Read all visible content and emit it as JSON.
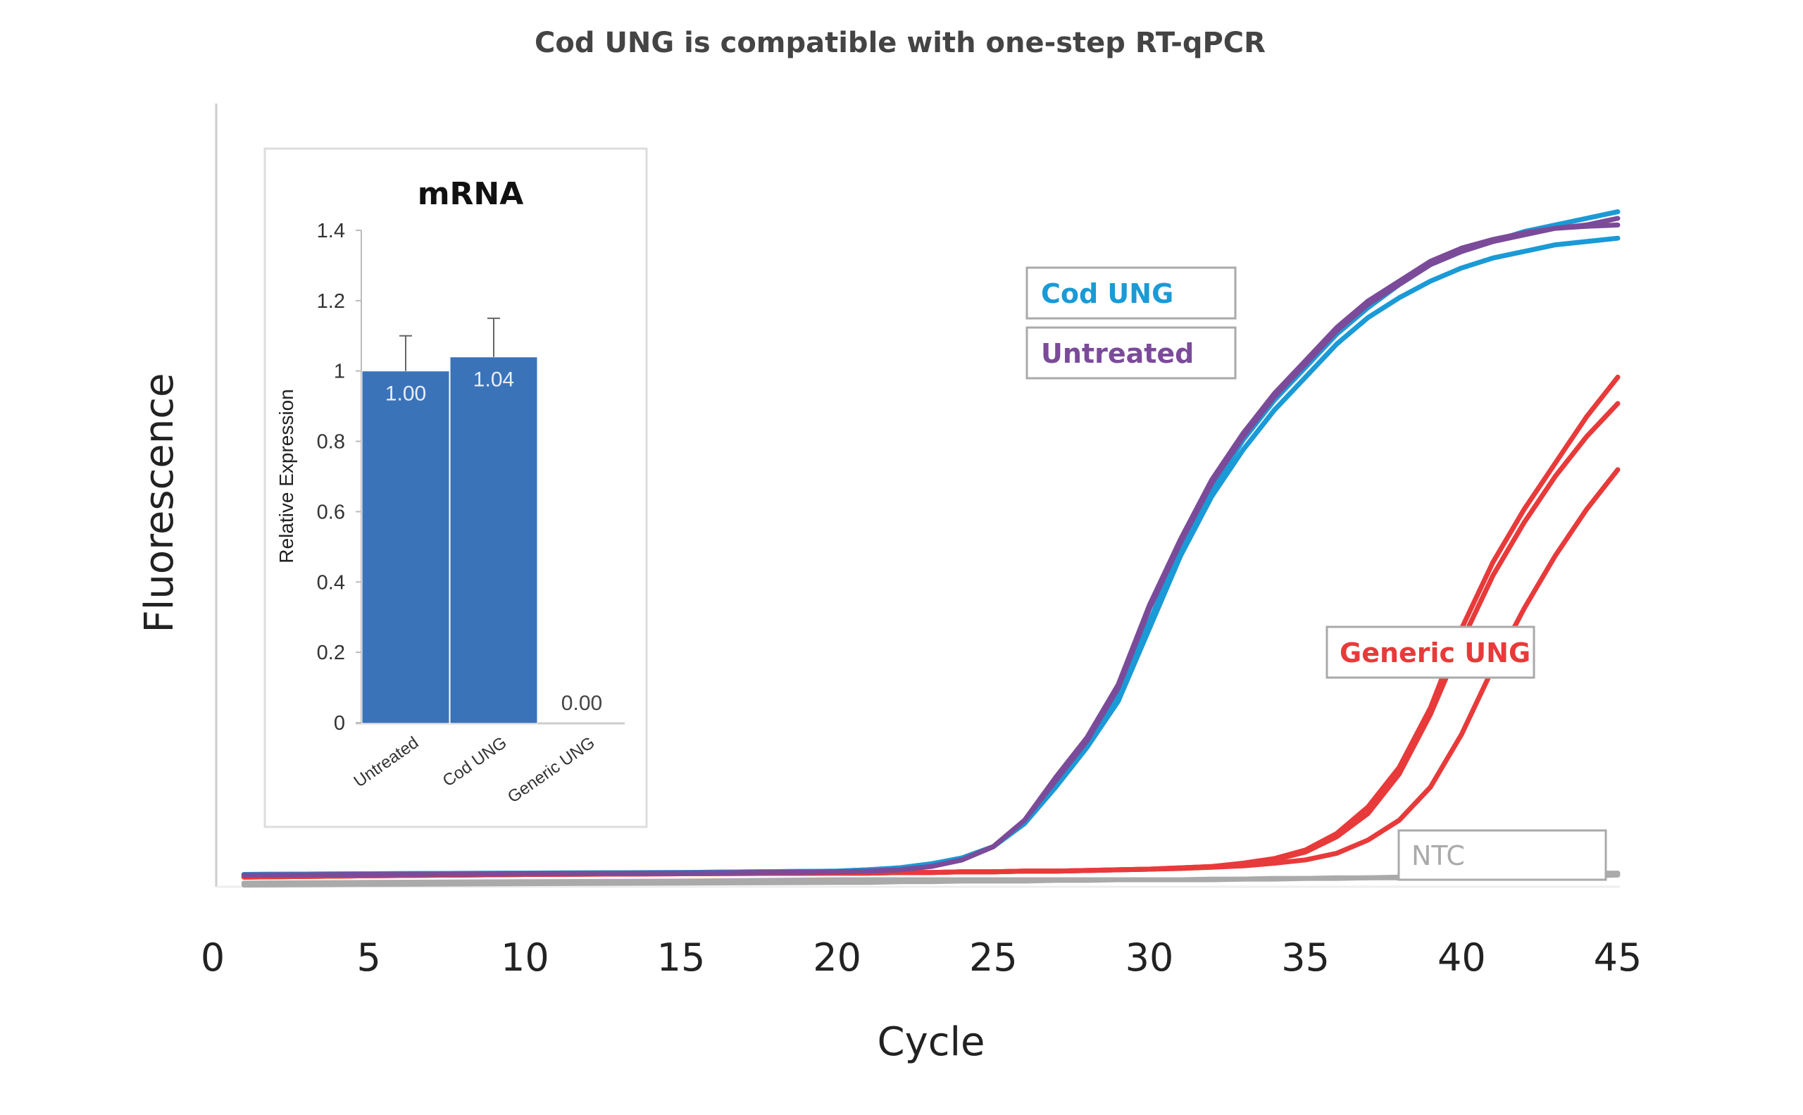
{
  "chart_data": [
    {
      "type": "line",
      "title": "Cod UNG is compatible with one-step RT-qPCR",
      "xlabel": "Cycle",
      "ylabel": "Fluorescence",
      "xlim": [
        0,
        45
      ],
      "xticks": [
        "0",
        "5",
        "10",
        "15",
        "20",
        "25",
        "30",
        "35",
        "40",
        "45"
      ],
      "grid": false,
      "x": [
        1,
        5,
        10,
        15,
        20,
        21,
        22,
        23,
        24,
        25,
        26,
        27,
        28,
        29,
        30,
        31,
        32,
        33,
        34,
        35,
        36,
        37,
        38,
        39,
        40,
        41,
        42,
        43,
        44,
        45
      ],
      "series": [
        {
          "group": "NTC",
          "color": "#aaaaaa",
          "values": [
            -0.005,
            -0.004,
            -0.003,
            -0.002,
            0,
            0,
            0,
            0,
            0,
            0,
            0,
            0,
            0,
            0,
            0,
            0,
            0.001,
            0.001,
            0.002,
            0.002,
            0.003,
            0.003,
            0.004,
            0.005,
            0.006,
            0.007,
            0.008,
            0.009,
            0.01,
            0.01
          ]
        },
        {
          "group": "NTC",
          "color": "#aaaaaa",
          "values": [
            -0.008,
            -0.007,
            -0.006,
            -0.005,
            -0.004,
            -0.004,
            -0.003,
            -0.003,
            -0.002,
            -0.002,
            -0.002,
            -0.001,
            -0.001,
            0,
            0,
            0,
            0,
            0.001,
            0.001,
            0.002,
            0.002,
            0.003,
            0.003,
            0.004,
            0.004,
            0.005,
            0.005,
            0.006,
            0.006,
            0.007
          ]
        },
        {
          "group": "Generic UNG",
          "color": "#e83a3a",
          "values": [
            0.004,
            0.006,
            0.008,
            0.009,
            0.01,
            0.01,
            0.011,
            0.011,
            0.012,
            0.012,
            0.013,
            0.013,
            0.014,
            0.015,
            0.016,
            0.018,
            0.02,
            0.025,
            0.032,
            0.045,
            0.07,
            0.11,
            0.17,
            0.26,
            0.38,
            0.48,
            0.56,
            0.63,
            0.7,
            0.76
          ]
        },
        {
          "group": "Generic UNG",
          "color": "#e83a3a",
          "values": [
            0.004,
            0.006,
            0.008,
            0.009,
            0.01,
            0.01,
            0.011,
            0.011,
            0.012,
            0.012,
            0.013,
            0.013,
            0.014,
            0.015,
            0.016,
            0.018,
            0.02,
            0.024,
            0.03,
            0.042,
            0.065,
            0.1,
            0.16,
            0.25,
            0.36,
            0.46,
            0.54,
            0.61,
            0.67,
            0.72
          ]
        },
        {
          "group": "Generic UNG",
          "color": "#e83a3a",
          "values": [
            0.004,
            0.006,
            0.008,
            0.009,
            0.01,
            0.01,
            0.011,
            0.011,
            0.012,
            0.012,
            0.013,
            0.013,
            0.014,
            0.015,
            0.016,
            0.017,
            0.019,
            0.021,
            0.025,
            0.03,
            0.04,
            0.06,
            0.09,
            0.14,
            0.22,
            0.32,
            0.41,
            0.49,
            0.56,
            0.62
          ]
        },
        {
          "group": "Cod UNG",
          "color": "#1a9ad6",
          "values": [
            0.008,
            0.009,
            0.01,
            0.011,
            0.013,
            0.015,
            0.018,
            0.024,
            0.033,
            0.05,
            0.085,
            0.14,
            0.2,
            0.27,
            0.38,
            0.49,
            0.58,
            0.65,
            0.71,
            0.76,
            0.81,
            0.85,
            0.88,
            0.905,
            0.925,
            0.94,
            0.95,
            0.96,
            0.965,
            0.97
          ]
        },
        {
          "group": "Cod UNG",
          "color": "#1a9ad6",
          "values": [
            0.008,
            0.009,
            0.01,
            0.011,
            0.013,
            0.015,
            0.018,
            0.024,
            0.033,
            0.05,
            0.085,
            0.145,
            0.205,
            0.28,
            0.39,
            0.5,
            0.59,
            0.665,
            0.725,
            0.775,
            0.825,
            0.865,
            0.9,
            0.93,
            0.95,
            0.965,
            0.98,
            0.99,
            1.0,
            1.01
          ]
        },
        {
          "group": "Untreated",
          "color": "#7b4b9a",
          "values": [
            0.007,
            0.008,
            0.009,
            0.01,
            0.012,
            0.013,
            0.015,
            0.02,
            0.03,
            0.05,
            0.09,
            0.15,
            0.21,
            0.29,
            0.41,
            0.51,
            0.6,
            0.67,
            0.73,
            0.78,
            0.83,
            0.87,
            0.9,
            0.93,
            0.95,
            0.965,
            0.975,
            0.985,
            0.99,
            1.0
          ]
        },
        {
          "group": "Untreated",
          "color": "#7b4b9a",
          "values": [
            0.007,
            0.008,
            0.009,
            0.01,
            0.012,
            0.013,
            0.015,
            0.02,
            0.03,
            0.05,
            0.09,
            0.155,
            0.215,
            0.295,
            0.415,
            0.515,
            0.605,
            0.675,
            0.735,
            0.785,
            0.835,
            0.875,
            0.905,
            0.935,
            0.955,
            0.968,
            0.978,
            0.985,
            0.988,
            0.99
          ]
        }
      ],
      "labels": [
        {
          "text": "Cod UNG",
          "color": "#1a9ad6"
        },
        {
          "text": "Untreated",
          "color": "#7b4b9a"
        },
        {
          "text": "Generic UNG",
          "color": "#e83a3a"
        },
        {
          "text": "NTC",
          "color": "#aaaaaa"
        }
      ]
    },
    {
      "type": "bar",
      "title": "mRNA",
      "ylabel": "Relative Expression",
      "ylim": [
        0,
        1.4
      ],
      "yticks": [
        "0",
        "0.2",
        "0.4",
        "0.6",
        "0.8",
        "1",
        "1.2",
        "1.4"
      ],
      "categories": [
        "Untreated",
        "Cod UNG",
        "Generic UNG"
      ],
      "values": [
        1.0,
        1.04,
        0.0
      ],
      "data_labels": [
        "1.00",
        "1.04",
        "0.00"
      ],
      "error_upper": [
        1.1,
        1.15,
        null
      ],
      "bar_color": "#3b73b9"
    }
  ]
}
